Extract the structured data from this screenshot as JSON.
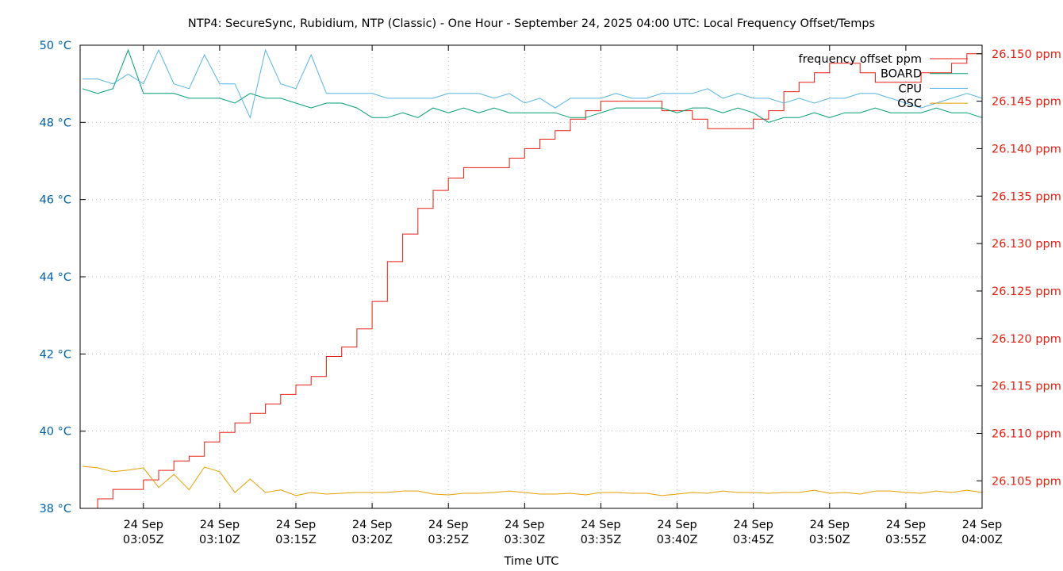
{
  "chart_data": {
    "type": "line",
    "title": "NTP4: SecureSync, Rubidium, NTP (Classic) - One Hour - September 24, 2025 04:00 UTC: Local Frequency Offset/Temps",
    "xlabel": "Time UTC",
    "x_ticks": [
      {
        "date": "24 Sep",
        "time": "03:05Z"
      },
      {
        "date": "24 Sep",
        "time": "03:10Z"
      },
      {
        "date": "24 Sep",
        "time": "03:15Z"
      },
      {
        "date": "24 Sep",
        "time": "03:20Z"
      },
      {
        "date": "24 Sep",
        "time": "03:25Z"
      },
      {
        "date": "24 Sep",
        "time": "03:30Z"
      },
      {
        "date": "24 Sep",
        "time": "03:35Z"
      },
      {
        "date": "24 Sep",
        "time": "03:40Z"
      },
      {
        "date": "24 Sep",
        "time": "03:45Z"
      },
      {
        "date": "24 Sep",
        "time": "03:50Z"
      },
      {
        "date": "24 Sep",
        "time": "03:55Z"
      },
      {
        "date": "24 Sep",
        "time": "04:00Z"
      }
    ],
    "x_tick_minutes": [
      5,
      10,
      15,
      20,
      25,
      30,
      35,
      40,
      45,
      50,
      55,
      60
    ],
    "x_range_minutes_after_0300": [
      0.85,
      60
    ],
    "x_minutes_after_0300": [
      1,
      2,
      3,
      4,
      5,
      6,
      7,
      8,
      9,
      10,
      11,
      12,
      13,
      14,
      15,
      16,
      17,
      18,
      19,
      20,
      21,
      22,
      23,
      24,
      25,
      26,
      27,
      28,
      29,
      30,
      31,
      32,
      33,
      34,
      35,
      36,
      37,
      38,
      39,
      40,
      41,
      42,
      43,
      44,
      45,
      46,
      47,
      48,
      49,
      50,
      51,
      52,
      53,
      54,
      55,
      56,
      57,
      58,
      59,
      60
    ],
    "y_left": {
      "range": [
        38,
        50
      ],
      "ticks": [
        38,
        40,
        42,
        44,
        46,
        48,
        50
      ],
      "tick_labels": [
        "38 °C",
        "40 °C",
        "42 °C",
        "44 °C",
        "46 °C",
        "48 °C",
        "50 °C"
      ],
      "color": "#0060ad"
    },
    "y_right": {
      "range": [
        26.1021,
        26.1509
      ],
      "ticks": [
        26.105,
        26.11,
        26.115,
        26.12,
        26.125,
        26.13,
        26.135,
        26.14,
        26.145,
        26.15
      ],
      "tick_labels": [
        "26.105 ppm",
        "26.110 ppm",
        "26.115 ppm",
        "26.120 ppm",
        "26.125 ppm",
        "26.130 ppm",
        "26.135 ppm",
        "26.140 ppm",
        "26.145 ppm",
        "26.150 ppm"
      ],
      "color": "#e51e10"
    },
    "grid": true,
    "legend_placement": "top-right",
    "series": [
      {
        "name": "frequency offset ppm",
        "axis": "right",
        "style": "steps",
        "color": "#e51e10",
        "values": [
          26.1021,
          26.1031,
          26.1041,
          26.1041,
          26.1051,
          26.1061,
          26.1071,
          26.1076,
          26.1091,
          26.1101,
          26.1111,
          26.1121,
          26.1131,
          26.1141,
          26.1151,
          26.116,
          26.1181,
          26.1191,
          26.121,
          26.1239,
          26.1281,
          26.131,
          26.1337,
          26.1356,
          26.1369,
          26.138,
          26.138,
          26.138,
          26.139,
          26.14,
          26.141,
          26.1419,
          26.1431,
          26.144,
          26.145,
          26.145,
          26.145,
          26.145,
          26.144,
          26.144,
          26.1431,
          26.1421,
          26.1421,
          26.1421,
          26.1431,
          26.144,
          26.146,
          26.147,
          26.148,
          26.149,
          26.149,
          26.148,
          26.147,
          26.147,
          26.147,
          26.148,
          26.148,
          26.149,
          26.15,
          26.1509
        ]
      },
      {
        "name": "BOARD",
        "axis": "left",
        "color": "#009e73",
        "values": [
          48.875,
          48.75,
          48.875,
          49.875,
          48.75,
          48.75,
          48.75,
          48.625,
          48.625,
          48.625,
          48.5,
          48.75,
          48.625,
          48.625,
          48.5,
          48.375,
          48.5,
          48.5,
          48.375,
          48.125,
          48.125,
          48.25,
          48.125,
          48.375,
          48.25,
          48.375,
          48.25,
          48.375,
          48.25,
          48.25,
          48.25,
          48.25,
          48.125,
          48.125,
          48.25,
          48.375,
          48.375,
          48.375,
          48.375,
          48.25,
          48.375,
          48.375,
          48.25,
          48.375,
          48.25,
          48.0,
          48.125,
          48.125,
          48.25,
          48.125,
          48.25,
          48.25,
          48.375,
          48.25,
          48.25,
          48.25,
          48.375,
          48.25,
          48.25,
          48.125
        ]
      },
      {
        "name": "CPU",
        "axis": "left",
        "color": "#56b4e9",
        "values": [
          49.125,
          49.125,
          49.0,
          49.25,
          49.0,
          49.875,
          49.0,
          48.875,
          49.75,
          49.0,
          49.0,
          48.125,
          49.875,
          49.0,
          48.875,
          49.75,
          48.75,
          48.75,
          48.75,
          48.75,
          48.625,
          48.625,
          48.625,
          48.625,
          48.75,
          48.75,
          48.75,
          48.625,
          48.75,
          48.5,
          48.625,
          48.375,
          48.625,
          48.625,
          48.625,
          48.75,
          48.625,
          48.625,
          48.75,
          48.75,
          48.75,
          48.875,
          48.625,
          48.75,
          48.625,
          48.625,
          48.5,
          48.625,
          48.5,
          48.625,
          48.625,
          48.75,
          48.75,
          48.625,
          48.5,
          48.375,
          48.5,
          48.625,
          48.75,
          48.625
        ]
      },
      {
        "name": "OSC",
        "axis": "left",
        "color": "#e69f00",
        "values": [
          39.09,
          39.05,
          38.95,
          38.99,
          39.05,
          38.54,
          38.88,
          38.48,
          39.07,
          38.95,
          38.41,
          38.76,
          38.41,
          38.48,
          38.33,
          38.41,
          38.37,
          38.39,
          38.41,
          38.41,
          38.41,
          38.45,
          38.45,
          38.37,
          38.35,
          38.39,
          38.39,
          38.41,
          38.45,
          38.41,
          38.37,
          38.37,
          38.39,
          38.35,
          38.41,
          38.41,
          38.39,
          38.39,
          38.33,
          38.37,
          38.41,
          38.39,
          38.45,
          38.41,
          38.41,
          38.39,
          38.41,
          38.41,
          38.47,
          38.39,
          38.41,
          38.37,
          38.45,
          38.45,
          38.41,
          38.39,
          38.45,
          38.41,
          38.47,
          38.41
        ]
      }
    ]
  }
}
